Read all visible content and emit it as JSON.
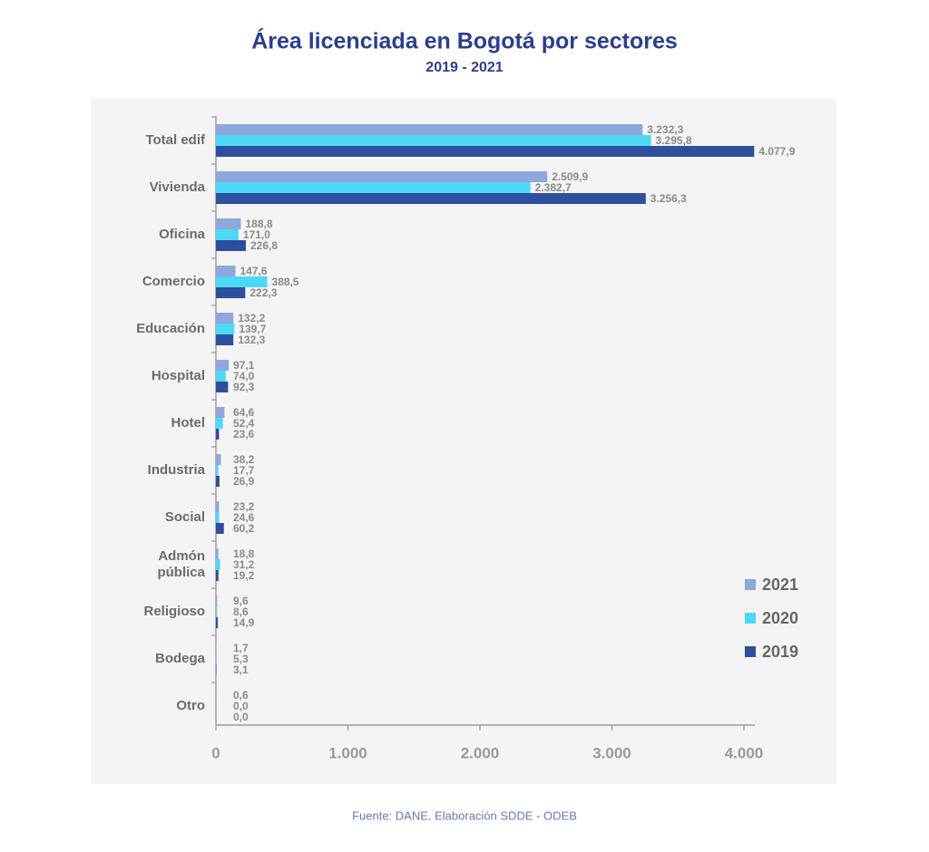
{
  "chart_data": {
    "type": "bar",
    "orientation": "horizontal",
    "title": "Área licenciada en Bogotá por sectores",
    "subtitle": "2019 - 2021",
    "source": "Fuente: DANE. Elaboración SDDE - ODEB",
    "categories": [
      "Total edif",
      "Vivienda",
      "Oficina",
      "Comercio",
      "Educación",
      "Hospital",
      "Hotel",
      "Industria",
      "Social",
      "Admón pública",
      "Religioso",
      "Bodega",
      "Otro"
    ],
    "series": [
      {
        "name": "2021",
        "color": "#8fa8dc",
        "values": [
          3232.3,
          2509.9,
          188.8,
          147.6,
          132.2,
          97.1,
          64.6,
          38.2,
          23.2,
          18.8,
          9.6,
          1.7,
          0.6
        ],
        "value_labels": [
          "3.232,3",
          "2.509,9",
          "188,8",
          "147,6",
          "132,2",
          "97,1",
          "64,6",
          "38,2",
          "23,2",
          "18,8",
          "9,6",
          "1,7",
          "0,6"
        ]
      },
      {
        "name": "2020",
        "color": "#4dd8f8",
        "values": [
          3295.8,
          2382.7,
          171.0,
          388.5,
          139.7,
          74.0,
          52.4,
          17.7,
          24.6,
          31.2,
          8.6,
          5.3,
          0.0
        ],
        "value_labels": [
          "3.295,8",
          "2.382,7",
          "171,0",
          "388,5",
          "139,7",
          "74,0",
          "52,4",
          "17,7",
          "24,6",
          "31,2",
          "8,6",
          "5,3",
          "0,0"
        ]
      },
      {
        "name": "2019",
        "color": "#2e4f9e",
        "values": [
          4077.9,
          3256.3,
          226.8,
          222.3,
          132.3,
          92.3,
          23.6,
          26.9,
          60.2,
          19.2,
          14.9,
          3.1,
          0.0
        ],
        "value_labels": [
          "4.077,9",
          "3.256,3",
          "226,8",
          "222,3",
          "132,3",
          "92,3",
          "23,6",
          "26,9",
          "60,2",
          "19,2",
          "14,9",
          "3,1",
          "0,0"
        ]
      }
    ],
    "xlim": [
      0,
      4000
    ],
    "xticks": [
      0,
      {
        "value": 1000,
        "label": "1.000"
      },
      {
        "value": 2000,
        "label": "2.000"
      },
      {
        "value": 3000,
        "label": "3.000"
      },
      {
        "value": 4000,
        "label": "4.000"
      }
    ],
    "grid": false,
    "legend": "bottom-right"
  }
}
